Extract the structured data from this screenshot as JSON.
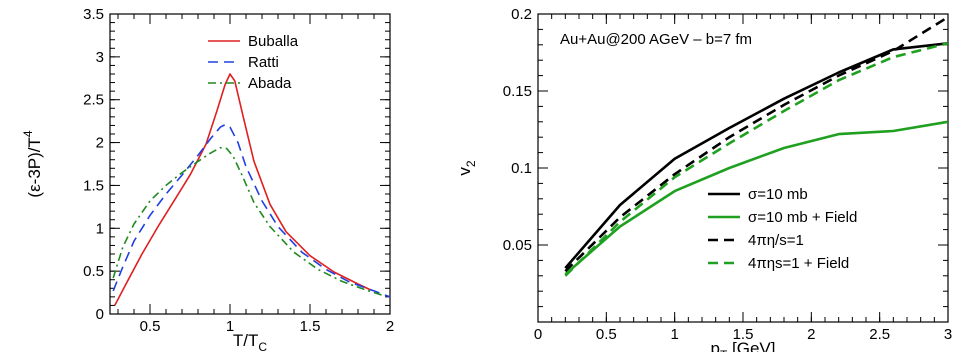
{
  "chart_data": [
    {
      "type": "line",
      "xlabel": "T/T",
      "xlabel_sub": "C",
      "ylabel": "(ε-3P)/T",
      "ylabel_sup": "4",
      "xlim": [
        0.25,
        2.0
      ],
      "ylim": [
        0,
        3.5
      ],
      "xticks": [
        0.5,
        1,
        1.5,
        2
      ],
      "xtick_labels": [
        "0.5",
        "1",
        "1.5",
        "2"
      ],
      "yticks": [
        0,
        0.5,
        1,
        1.5,
        2,
        2.5,
        3,
        3.5
      ],
      "ytick_labels": [
        "0",
        "0.5",
        "1",
        "1.5",
        "2",
        "2.5",
        "3",
        "3.5"
      ],
      "grid": false,
      "legend_position": "top-right",
      "series": [
        {
          "name": "Buballa",
          "color": "#e02020",
          "dash": "solid",
          "points": [
            [
              0.28,
              0.1
            ],
            [
              0.35,
              0.35
            ],
            [
              0.45,
              0.7
            ],
            [
              0.55,
              1.02
            ],
            [
              0.65,
              1.32
            ],
            [
              0.75,
              1.62
            ],
            [
              0.85,
              1.98
            ],
            [
              0.92,
              2.38
            ],
            [
              0.97,
              2.68
            ],
            [
              1.0,
              2.8
            ],
            [
              1.03,
              2.72
            ],
            [
              1.08,
              2.32
            ],
            [
              1.15,
              1.78
            ],
            [
              1.25,
              1.28
            ],
            [
              1.35,
              0.96
            ],
            [
              1.5,
              0.68
            ],
            [
              1.65,
              0.49
            ],
            [
              1.8,
              0.35
            ],
            [
              1.88,
              0.28
            ]
          ]
        },
        {
          "name": "Ratti",
          "color": "#2040e0",
          "dash": "dash",
          "points": [
            [
              0.27,
              0.27
            ],
            [
              0.33,
              0.55
            ],
            [
              0.4,
              0.85
            ],
            [
              0.5,
              1.15
            ],
            [
              0.6,
              1.4
            ],
            [
              0.7,
              1.62
            ],
            [
              0.8,
              1.85
            ],
            [
              0.88,
              2.05
            ],
            [
              0.94,
              2.18
            ],
            [
              0.97,
              2.21
            ],
            [
              1.0,
              2.18
            ],
            [
              1.05,
              2.0
            ],
            [
              1.1,
              1.72
            ],
            [
              1.2,
              1.32
            ],
            [
              1.3,
              1.02
            ],
            [
              1.45,
              0.72
            ],
            [
              1.6,
              0.52
            ],
            [
              1.75,
              0.37
            ],
            [
              1.9,
              0.27
            ],
            [
              2.0,
              0.2
            ]
          ]
        },
        {
          "name": "Abada",
          "color": "#208a20",
          "dash": "dashdot",
          "points": [
            [
              0.27,
              0.42
            ],
            [
              0.33,
              0.78
            ],
            [
              0.4,
              1.05
            ],
            [
              0.5,
              1.32
            ],
            [
              0.6,
              1.5
            ],
            [
              0.7,
              1.65
            ],
            [
              0.8,
              1.78
            ],
            [
              0.88,
              1.88
            ],
            [
              0.94,
              1.94
            ],
            [
              0.98,
              1.93
            ],
            [
              1.02,
              1.84
            ],
            [
              1.08,
              1.6
            ],
            [
              1.15,
              1.3
            ],
            [
              1.25,
              1.02
            ],
            [
              1.4,
              0.72
            ],
            [
              1.55,
              0.52
            ],
            [
              1.7,
              0.38
            ],
            [
              1.85,
              0.28
            ],
            [
              1.95,
              0.22
            ]
          ]
        }
      ]
    },
    {
      "type": "line",
      "xlabel": "p",
      "xlabel_sub": "T",
      "xlabel_unit": " [GeV]",
      "ylabel": "v",
      "ylabel_sub": "2",
      "annotation": "Au+Au@200 AGeV – b=7 fm",
      "xlim": [
        0,
        3
      ],
      "ylim": [
        0,
        0.2
      ],
      "xticks": [
        0,
        0.5,
        1,
        1.5,
        2,
        2.5,
        3
      ],
      "xtick_labels": [
        "0",
        "0.5",
        "1",
        "1.5",
        "2",
        "2.5",
        "3"
      ],
      "yticks": [
        0.05,
        0.1,
        0.15,
        0.2
      ],
      "ytick_labels": [
        "0.05",
        "0.1",
        "0.15",
        "0.2"
      ],
      "grid": false,
      "legend_position": "bottom-right",
      "series": [
        {
          "name": "σ=10 mb",
          "color": "#000000",
          "dash": "solid",
          "points": [
            [
              0.2,
              0.035
            ],
            [
              0.6,
              0.076
            ],
            [
              1.0,
              0.106
            ],
            [
              1.4,
              0.126
            ],
            [
              1.8,
              0.145
            ],
            [
              2.2,
              0.162
            ],
            [
              2.6,
              0.177
            ],
            [
              3.0,
              0.181
            ]
          ]
        },
        {
          "name": "σ=10 mb + Field",
          "color": "#20a020",
          "dash": "solid",
          "points": [
            [
              0.2,
              0.031
            ],
            [
              0.6,
              0.062
            ],
            [
              1.0,
              0.085
            ],
            [
              1.4,
              0.1
            ],
            [
              1.8,
              0.113
            ],
            [
              2.2,
              0.122
            ],
            [
              2.6,
              0.124
            ],
            [
              3.0,
              0.13
            ]
          ]
        },
        {
          "name": "4πη/s=1",
          "color": "#000000",
          "dash": "dash",
          "points": [
            [
              0.2,
              0.033
            ],
            [
              0.6,
              0.068
            ],
            [
              1.0,
              0.096
            ],
            [
              1.4,
              0.12
            ],
            [
              1.8,
              0.141
            ],
            [
              2.2,
              0.16
            ],
            [
              2.6,
              0.176
            ],
            [
              3.0,
              0.198
            ]
          ]
        },
        {
          "name": "4πηs=1 + Field",
          "color": "#20a020",
          "dash": "dash",
          "points": [
            [
              0.2,
              0.03
            ],
            [
              0.6,
              0.065
            ],
            [
              1.0,
              0.094
            ],
            [
              1.4,
              0.116
            ],
            [
              1.8,
              0.137
            ],
            [
              2.2,
              0.157
            ],
            [
              2.6,
              0.172
            ],
            [
              3.0,
              0.181
            ]
          ]
        }
      ]
    }
  ]
}
